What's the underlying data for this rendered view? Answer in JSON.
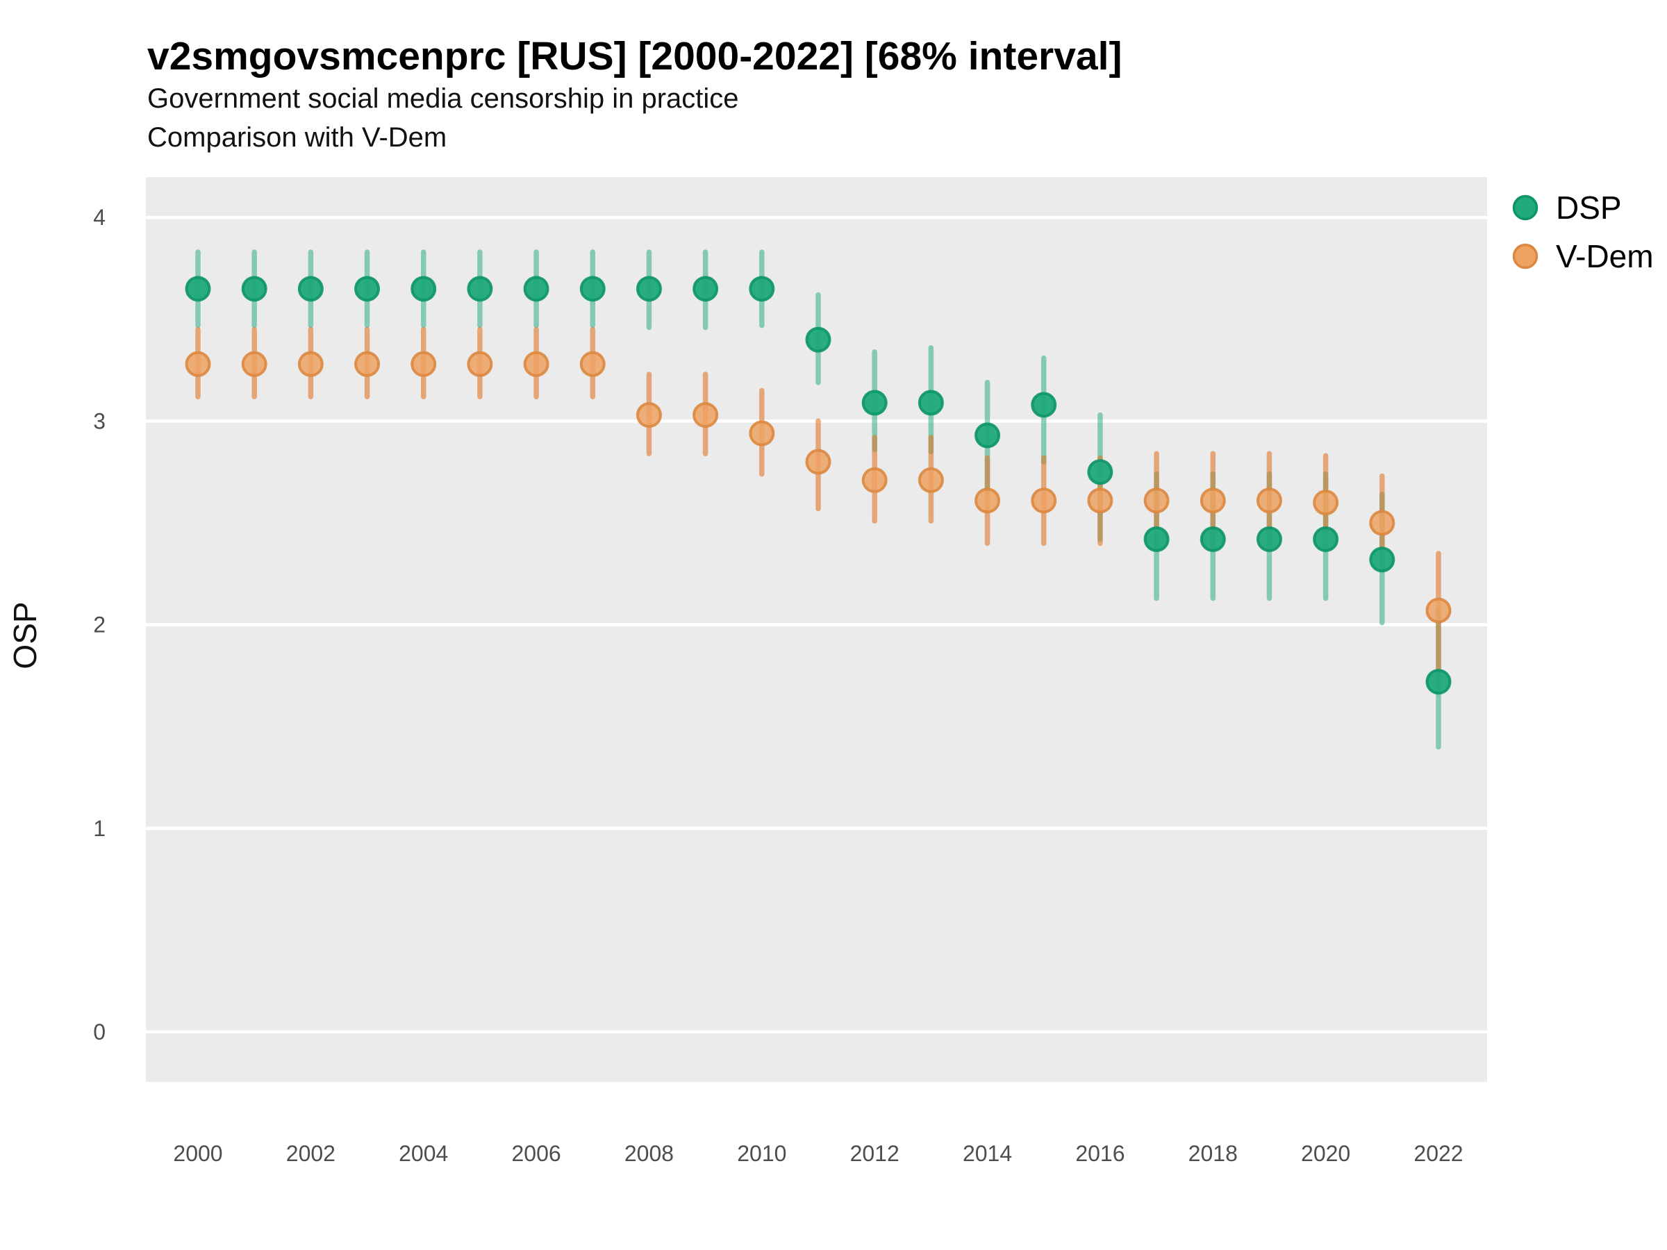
{
  "header": {
    "title": "v2smgovsmcenprc [RUS] [2000-2022] [68% interval]",
    "subtitle_line1": "Government social media censorship in practice",
    "subtitle_line2": "Comparison with V-Dem"
  },
  "axes": {
    "y_label": "OSP",
    "y_ticks": [
      "0",
      "1",
      "2",
      "3",
      "4"
    ],
    "x_ticks": [
      "2000",
      "2002",
      "2004",
      "2006",
      "2008",
      "2010",
      "2012",
      "2014",
      "2016",
      "2018",
      "2020",
      "2022"
    ]
  },
  "legend": {
    "position": "top-right",
    "items": [
      {
        "label": "DSP"
      },
      {
        "label": "V-Dem"
      }
    ]
  },
  "colors": {
    "panel_bg": "#EBEBEB",
    "grid": "#FFFFFF",
    "tick_text": "#4D4D4D",
    "dsp": {
      "bar_color": "#12A277",
      "bar_opacity": 0.48,
      "point_fill": "#1FA97C",
      "point_fill_opacity": 0.95,
      "point_stroke": "#0D9568"
    },
    "vdem": {
      "bar_color": "#E0782A",
      "bar_opacity": 0.6,
      "point_fill": "#EDA261",
      "point_fill_opacity": 0.85,
      "point_stroke": "#DC8840"
    }
  },
  "chart_data": {
    "type": "scatter",
    "title": "v2smgovsmcenprc [RUS] [2000-2022] [68% interval]",
    "xlabel": "",
    "ylabel": "OSP",
    "interval": "68%",
    "grid": true,
    "legend_position": "top-right",
    "ylim": [
      -0.25,
      4.2
    ],
    "yticks": [
      0,
      1,
      2,
      3,
      4
    ],
    "xticks": [
      2000,
      2002,
      2004,
      2006,
      2008,
      2010,
      2012,
      2014,
      2016,
      2018,
      2020,
      2022
    ],
    "x": [
      2000,
      2001,
      2002,
      2003,
      2004,
      2005,
      2006,
      2007,
      2008,
      2009,
      2010,
      2011,
      2012,
      2013,
      2014,
      2015,
      2016,
      2017,
      2018,
      2019,
      2020,
      2021,
      2022
    ],
    "series": [
      {
        "name": "DSP",
        "values": [
          3.65,
          3.65,
          3.65,
          3.65,
          3.65,
          3.65,
          3.65,
          3.65,
          3.65,
          3.65,
          3.65,
          3.4,
          3.09,
          3.09,
          2.93,
          3.08,
          2.75,
          2.42,
          2.42,
          2.42,
          2.42,
          2.32,
          1.72
        ],
        "lo": [
          3.47,
          3.47,
          3.47,
          3.47,
          3.47,
          3.47,
          3.47,
          3.47,
          3.46,
          3.46,
          3.47,
          3.19,
          2.86,
          2.85,
          2.66,
          2.8,
          2.42,
          2.13,
          2.13,
          2.13,
          2.13,
          2.01,
          1.4
        ],
        "hi": [
          3.83,
          3.83,
          3.83,
          3.83,
          3.83,
          3.83,
          3.83,
          3.83,
          3.83,
          3.83,
          3.83,
          3.62,
          3.34,
          3.36,
          3.19,
          3.31,
          3.03,
          2.74,
          2.74,
          2.74,
          2.74,
          2.64,
          2.07
        ]
      },
      {
        "name": "V-Dem",
        "values": [
          3.28,
          3.28,
          3.28,
          3.28,
          3.28,
          3.28,
          3.28,
          3.28,
          3.03,
          3.03,
          2.94,
          2.8,
          2.71,
          2.71,
          2.61,
          2.61,
          2.61,
          2.61,
          2.61,
          2.61,
          2.6,
          2.5,
          2.07
        ],
        "lo": [
          3.12,
          3.12,
          3.12,
          3.12,
          3.12,
          3.12,
          3.12,
          3.12,
          2.84,
          2.84,
          2.74,
          2.57,
          2.51,
          2.51,
          2.4,
          2.4,
          2.4,
          2.38,
          2.38,
          2.38,
          2.38,
          2.27,
          1.79
        ],
        "hi": [
          3.45,
          3.45,
          3.45,
          3.45,
          3.45,
          3.45,
          3.45,
          3.45,
          3.23,
          3.23,
          3.15,
          3.0,
          2.92,
          2.92,
          2.82,
          2.82,
          2.82,
          2.84,
          2.84,
          2.84,
          2.83,
          2.73,
          2.35
        ]
      }
    ]
  }
}
